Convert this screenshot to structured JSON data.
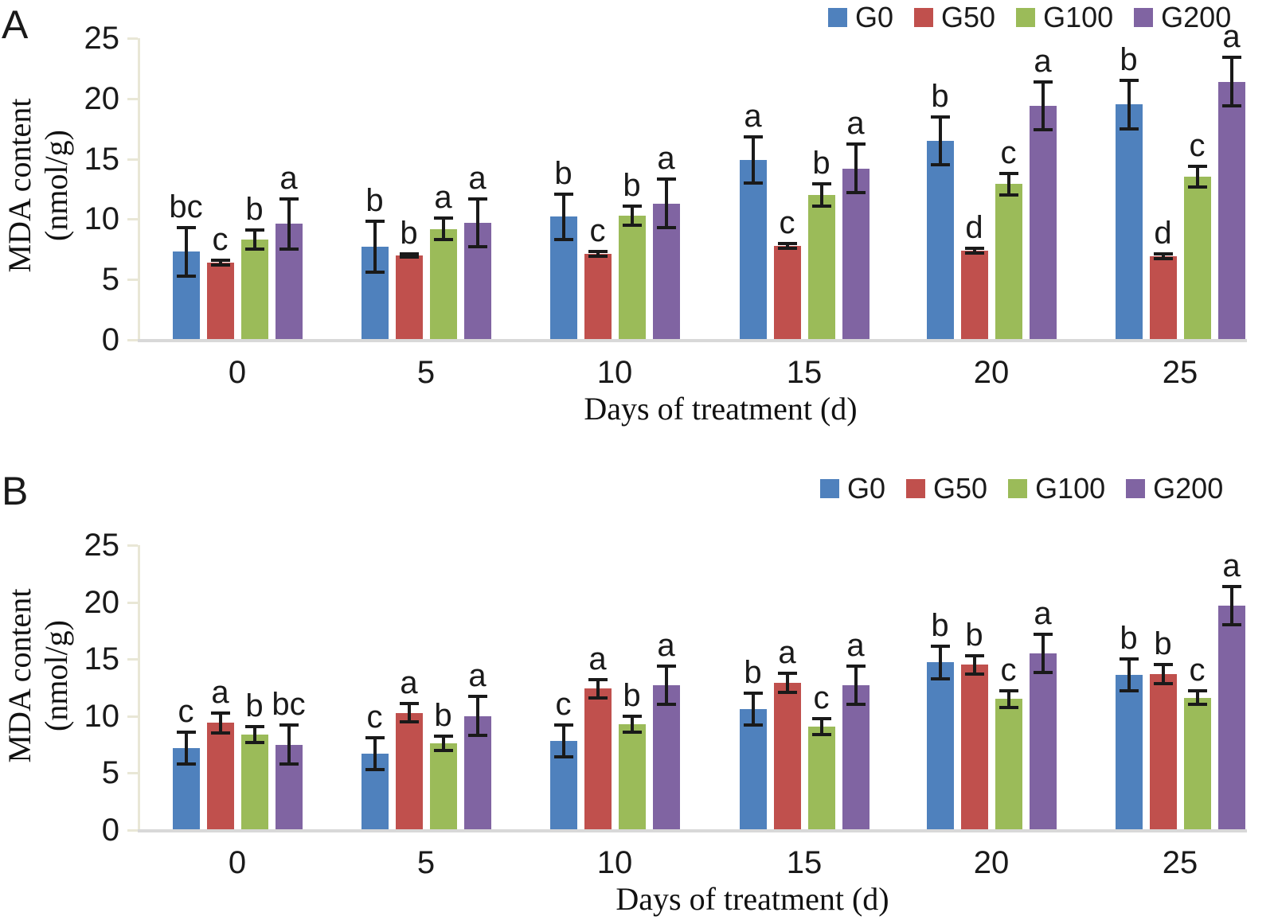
{
  "figure": {
    "panel_a_label": "A",
    "panel_b_label": "B",
    "y_axis_title_line1": "MDA content",
    "y_axis_title_line2": "(nmol/g)",
    "x_axis_title": "Days of treatment (d)",
    "colors": {
      "G0": "#4F81BD",
      "G50": "#C0504D",
      "G100": "#9BBB59",
      "G200": "#8064A2"
    }
  },
  "chart_data": [
    {
      "type": "bar",
      "title": "A",
      "categories": [
        "0",
        "5",
        "10",
        "15",
        "20",
        "25"
      ],
      "xlabel": "Days of treatment (d)",
      "ylabel": "MDA content (nmol/g)",
      "ylim": [
        0,
        25
      ],
      "yticks": [
        "0",
        "5",
        "10",
        "15",
        "20",
        "25"
      ],
      "grid": false,
      "legend_position": "top-right",
      "legend": [
        "G0",
        "G50",
        "G100",
        "G200"
      ],
      "series": [
        {
          "name": "G0",
          "color": "#4F81BD",
          "values": [
            7.3,
            7.7,
            10.2,
            14.9,
            16.5,
            19.5
          ],
          "errors": [
            2.0,
            2.1,
            1.9,
            1.9,
            2.0,
            2.0
          ],
          "letters": [
            "bc",
            "b",
            "b",
            "a",
            "b",
            "b"
          ]
        },
        {
          "name": "G50",
          "color": "#C0504D",
          "values": [
            6.4,
            7.0,
            7.1,
            7.8,
            7.4,
            6.9
          ],
          "errors": [
            0.2,
            0.15,
            0.2,
            0.2,
            0.2,
            0.2
          ],
          "letters": [
            "c",
            "b",
            "c",
            "c",
            "d",
            "d"
          ]
        },
        {
          "name": "G100",
          "color": "#9BBB59",
          "values": [
            8.3,
            9.2,
            10.3,
            12.0,
            12.9,
            13.5
          ],
          "errors": [
            0.8,
            0.9,
            0.8,
            0.9,
            0.9,
            0.85
          ],
          "letters": [
            "b",
            "a",
            "b",
            "b",
            "c",
            "c"
          ]
        },
        {
          "name": "G200",
          "color": "#8064A2",
          "values": [
            9.6,
            9.7,
            11.3,
            14.2,
            19.4,
            21.4
          ],
          "errors": [
            2.1,
            2.0,
            2.0,
            2.0,
            2.0,
            2.0
          ],
          "letters": [
            "a",
            "a",
            "a",
            "a",
            "a",
            "a"
          ]
        }
      ]
    },
    {
      "type": "bar",
      "title": "B",
      "categories": [
        "0",
        "5",
        "10",
        "15",
        "20",
        "25"
      ],
      "xlabel": "Days of treatment (d)",
      "ylabel": "MDA content (nmol/g)",
      "ylim": [
        0,
        25
      ],
      "yticks": [
        "0",
        "5",
        "10",
        "15",
        "20",
        "25"
      ],
      "grid": false,
      "legend_position": "top-right",
      "legend": [
        "G0",
        "G50",
        "G100",
        "G200"
      ],
      "series": [
        {
          "name": "G0",
          "color": "#4F81BD",
          "values": [
            7.2,
            6.7,
            7.8,
            10.6,
            14.7,
            13.6
          ],
          "errors": [
            1.4,
            1.4,
            1.4,
            1.4,
            1.4,
            1.4
          ],
          "letters": [
            "c",
            "c",
            "c",
            "b",
            "b",
            "b"
          ]
        },
        {
          "name": "G50",
          "color": "#C0504D",
          "values": [
            9.4,
            10.3,
            12.4,
            12.9,
            14.5,
            13.7
          ],
          "errors": [
            0.9,
            0.8,
            0.8,
            0.85,
            0.8,
            0.85
          ],
          "letters": [
            "a",
            "a",
            "a",
            "a",
            "b",
            "b"
          ]
        },
        {
          "name": "G100",
          "color": "#9BBB59",
          "values": [
            8.4,
            7.6,
            9.3,
            9.1,
            11.5,
            11.6
          ],
          "errors": [
            0.7,
            0.65,
            0.7,
            0.7,
            0.75,
            0.6
          ],
          "letters": [
            "b",
            "b",
            "b",
            "c",
            "c",
            "c"
          ]
        },
        {
          "name": "G200",
          "color": "#8064A2",
          "values": [
            7.5,
            10.0,
            12.7,
            12.7,
            15.5,
            19.7
          ],
          "errors": [
            1.7,
            1.7,
            1.7,
            1.7,
            1.7,
            1.7
          ],
          "letters": [
            "bc",
            "a",
            "a",
            "a",
            "a",
            "a"
          ]
        }
      ]
    }
  ]
}
